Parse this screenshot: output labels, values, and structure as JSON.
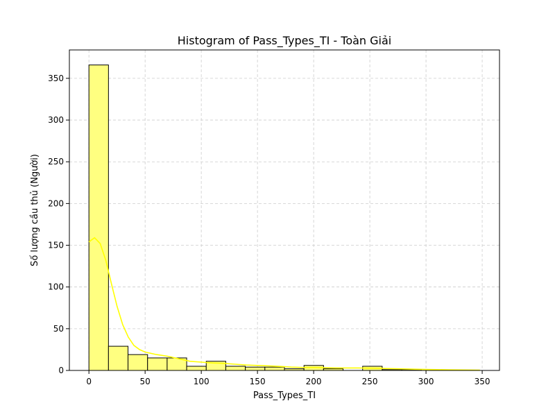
{
  "chart_data": {
    "type": "bar",
    "title": "Histogram of Pass_Types_TI - Toàn Giải",
    "xlabel": "Pass_Types_TI",
    "ylabel": "Số lượng cầu thủ (Người)",
    "xlim": [
      -17.4,
      365.4
    ],
    "ylim": [
      0,
      384
    ],
    "xticks": [
      0,
      50,
      100,
      150,
      200,
      250,
      300,
      350
    ],
    "yticks": [
      0,
      50,
      100,
      150,
      200,
      250,
      300,
      350
    ],
    "grid": true,
    "bin_edges": [
      0,
      17.4,
      34.8,
      52.2,
      69.6,
      87,
      104.4,
      121.8,
      139.2,
      156.6,
      174,
      191.4,
      208.8,
      226.2,
      243.6,
      261,
      278.4,
      295.8,
      313.2,
      330.6,
      348
    ],
    "counts": [
      366,
      29,
      19,
      15,
      15,
      5,
      11,
      5,
      4,
      4,
      2,
      6,
      2,
      0,
      5,
      1,
      1,
      0,
      0,
      0
    ],
    "kde": {
      "x": [
        0,
        5,
        10,
        15,
        20,
        25,
        30,
        35,
        40,
        45,
        50,
        60,
        70,
        80,
        90,
        100,
        110,
        120,
        130,
        140,
        150,
        160,
        170,
        180,
        190,
        200,
        220,
        240,
        260,
        280,
        300,
        320,
        348
      ],
      "y": [
        154,
        159,
        152,
        132,
        104,
        77,
        55,
        40,
        30,
        25,
        22,
        19,
        17,
        14,
        11,
        10,
        9,
        8.5,
        7.5,
        6.5,
        6,
        5.5,
        4.8,
        4,
        3.6,
        3.5,
        3,
        3,
        2.4,
        1.8,
        1.2,
        0.8,
        0.3
      ]
    },
    "colors": {
      "bar_fill": "#ffff80",
      "bar_edge": "#000000",
      "kde_line": "#ffff00",
      "grid": "#cccccc"
    }
  }
}
